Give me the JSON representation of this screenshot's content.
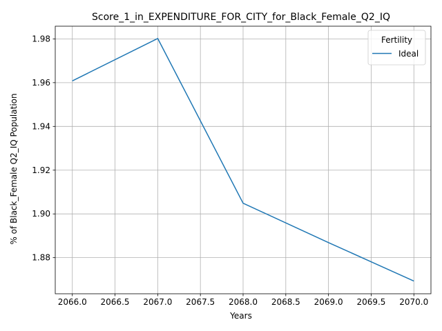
{
  "chart_data": {
    "type": "line",
    "title": "Score_1_in_EXPENDITURE_FOR_CITY_for_Black_Female_Q2_IQ",
    "xlabel": "Years",
    "ylabel": "% of Black_Female Q2_IQ Population",
    "x": [
      2066,
      2067,
      2068,
      2069,
      2070
    ],
    "series": [
      {
        "name": "Ideal",
        "color": "#1f77b4",
        "values": [
          1.9608,
          1.9802,
          1.9049,
          1.8869,
          1.8693
        ]
      }
    ],
    "xlim": [
      2065.8,
      2070.2
    ],
    "ylim": [
      1.8635,
      1.9858
    ],
    "xticks": [
      2066.0,
      2066.5,
      2067.0,
      2067.5,
      2068.0,
      2068.5,
      2069.0,
      2069.5,
      2070.0
    ],
    "xtick_labels": [
      "2066.0",
      "2066.5",
      "2067.0",
      "2067.5",
      "2068.0",
      "2068.5",
      "2069.0",
      "2069.5",
      "2070.0"
    ],
    "yticks": [
      1.88,
      1.9,
      1.92,
      1.94,
      1.96,
      1.98
    ],
    "ytick_labels": [
      "1.88",
      "1.90",
      "1.92",
      "1.94",
      "1.96",
      "1.98"
    ],
    "grid": true,
    "legend": {
      "title": "Fertility",
      "placement": "top-right"
    }
  }
}
